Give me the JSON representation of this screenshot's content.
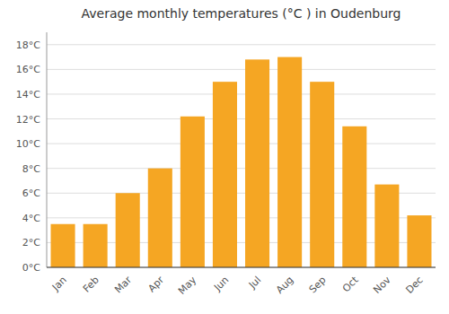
{
  "chart_data": {
    "type": "bar",
    "title": "Average monthly temperatures (°C ) in Oudenburg",
    "categories": [
      "Jan",
      "Feb",
      "Mar",
      "Apr",
      "May",
      "Jun",
      "Jul",
      "Aug",
      "Sep",
      "Oct",
      "Nov",
      "Dec"
    ],
    "values": [
      3.5,
      3.5,
      6.0,
      8.0,
      12.2,
      15.0,
      16.8,
      17.0,
      15.0,
      11.4,
      6.7,
      4.2
    ],
    "color": "#F5A623",
    "ylim": [
      0,
      19
    ],
    "yticks": [
      {
        "value": 0,
        "label": "0°C"
      },
      {
        "value": 2,
        "label": "2°C"
      },
      {
        "value": 4,
        "label": "4°C"
      },
      {
        "value": 6,
        "label": "6°C"
      },
      {
        "value": 8,
        "label": "8°C"
      },
      {
        "value": 10,
        "label": "10°C"
      },
      {
        "value": 12,
        "label": "12°C"
      },
      {
        "value": 14,
        "label": "14°C"
      },
      {
        "value": 16,
        "label": "16°C"
      },
      {
        "value": 18,
        "label": "18°C"
      }
    ],
    "grid": true
  }
}
